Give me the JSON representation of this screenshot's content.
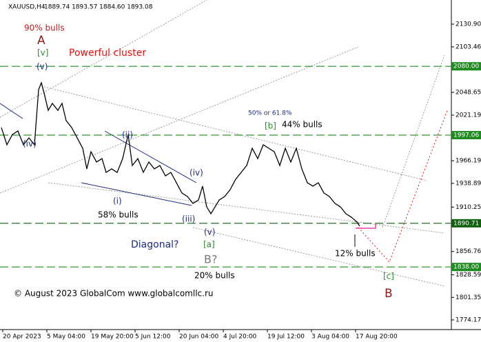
{
  "chart_data": {
    "type": "line",
    "title": "XAUUSD,H4",
    "ohlc": "1889.74 1893.57 1884.60 1893.08",
    "x": [
      0,
      2,
      4,
      6,
      8,
      10,
      12,
      13.5,
      14.5,
      15.5,
      17,
      18.5,
      20.5,
      22,
      23.5,
      25.5,
      27.5,
      29.5,
      31,
      32.5,
      34.5,
      36.5,
      38,
      40,
      42,
      44,
      46,
      47.5,
      49.5,
      51.5,
      53.5,
      55.5,
      57.5,
      59.5,
      61.5,
      63.5,
      65.5,
      67.5,
      69.5,
      71.5,
      73,
      74.5,
      76,
      77.5,
      79,
      81,
      83,
      85,
      87,
      89,
      91,
      93,
      95,
      97,
      99,
      101,
      103,
      105,
      107,
      109,
      111,
      113,
      115,
      117,
      119,
      121,
      123,
      125,
      127,
      129,
      130
    ],
    "series": [
      {
        "name": "XAUUSD",
        "color": "#000000",
        "values": [
          2006.2,
          1985.4,
          1997.8,
          2002.0,
          1985.4,
          1993.7,
          1985.4,
          2051.9,
          2060.2,
          2047.7,
          2026.9,
          2035.3,
          2026.9,
          2035.3,
          2014.5,
          2006.2,
          1993.7,
          1981.2,
          1956.3,
          1977.0,
          1964.6,
          1968.7,
          1952.1,
          1956.3,
          1952.1,
          1968.7,
          1997.8,
          1960.4,
          1968.7,
          1952.1,
          1964.6,
          1956.3,
          1960.4,
          1947.9,
          1952.1,
          1939.6,
          1927.2,
          1923.0,
          1914.7,
          1918.8,
          1935.5,
          1910.5,
          1902.2,
          1910.5,
          1918.8,
          1923.0,
          1931.3,
          1943.8,
          1952.1,
          1960.4,
          1981.2,
          1968.7,
          1985.4,
          1981.2,
          1977.0,
          1960.4,
          1981.2,
          1964.6,
          1981.2,
          1956.3,
          1939.6,
          1935.5,
          1939.6,
          1927.2,
          1923.0,
          1914.7,
          1910.5,
          1902.2,
          1898.0,
          1892.2,
          1887.2
        ]
      }
    ],
    "xlim": [
      -0.5,
      159.5
    ],
    "xticks": [
      {
        "value": 0,
        "label": "20 Apr 2023"
      },
      {
        "value": 16,
        "label": "5 May 04:00"
      },
      {
        "value": 32,
        "label": "19 May 20:00"
      },
      {
        "value": 48,
        "label": "5 Jun 12:00"
      },
      {
        "value": 64,
        "label": "20 Jun 04:00"
      },
      {
        "value": 80,
        "label": "4 Jul 20:00"
      },
      {
        "value": 96,
        "label": "19 Jul 12:00"
      },
      {
        "value": 112,
        "label": "3 Aug 04:00"
      },
      {
        "value": 128,
        "label": "17 Aug 20:00"
      }
    ],
    "ylim": [
      1762.5,
      2160.0
    ],
    "yticks": [
      {
        "value": 2130.9,
        "label": "2130.90"
      },
      {
        "value": 2103.46,
        "label": "2103.46"
      },
      {
        "value": 2048.65,
        "label": "2048.65"
      },
      {
        "value": 2021.19,
        "label": "2021.19"
      },
      {
        "value": 1966.19,
        "label": "1966.19"
      },
      {
        "value": 1938.89,
        "label": "1938.89"
      },
      {
        "value": 1910.25,
        "label": "1910.25"
      },
      {
        "value": 1856.76,
        "label": "1856.76"
      },
      {
        "value": 1828.59,
        "label": "1828.59"
      },
      {
        "value": 1801.35,
        "label": "1801.35"
      },
      {
        "value": 1774.17,
        "label": "1774.17"
      }
    ],
    "levels": [
      {
        "value": 2080,
        "label": "2080.00",
        "color": "#1f8a1f"
      },
      {
        "value": 1997.06,
        "label": "1997.06",
        "color": "#1f8a1f"
      },
      {
        "value": 1890.71,
        "label": "1890.71",
        "color": "#0f5f0f"
      },
      {
        "value": 1838,
        "label": "1838.00",
        "color": "#1f8a1f"
      }
    ],
    "annotations": [
      {
        "text": "90% bulls",
        "color": "#b22222"
      },
      {
        "text": "A",
        "color": "#8b1a1a"
      },
      {
        "text": "[v]",
        "color": "#2e8b2e"
      },
      {
        "text": "(v)",
        "color": "#1c2a7a"
      },
      {
        "text": "Powerful cluster",
        "color": "#e01010"
      },
      {
        "text": "(iv)",
        "color": "#1c2a7a"
      },
      {
        "text": "(ii)",
        "color": "#1c2a7a"
      },
      {
        "text": "(iv)",
        "color": "#1c2a7a"
      },
      {
        "text": "(i)",
        "color": "#1c2a7a"
      },
      {
        "text": "58% bulls",
        "color": "#000000"
      },
      {
        "text": "(iii)",
        "color": "#1c2a7a"
      },
      {
        "text": "(v)",
        "color": "#1c2a7a"
      },
      {
        "text": "[a]",
        "color": "#2e8b2e"
      },
      {
        "text": "Diagonal?",
        "color": "#1c2a7a"
      },
      {
        "text": "B?",
        "color": "#777777"
      },
      {
        "text": "20% bulls",
        "color": "#000000"
      },
      {
        "text": "50% or 61.8%",
        "color": "#1c2a7a"
      },
      {
        "text": "[b]",
        "color": "#2e8b2e"
      },
      {
        "text": "44% bulls",
        "color": "#000000"
      },
      {
        "text": "12% bulls",
        "color": "#000000"
      },
      {
        "text": "[c]",
        "color": "#2e8b2e"
      },
      {
        "text": "B",
        "color": "#8b1a1a"
      },
      {
        "text": "© August 2023 GlobalCom www.globalcomllc.ru",
        "color": "#000000"
      }
    ]
  }
}
